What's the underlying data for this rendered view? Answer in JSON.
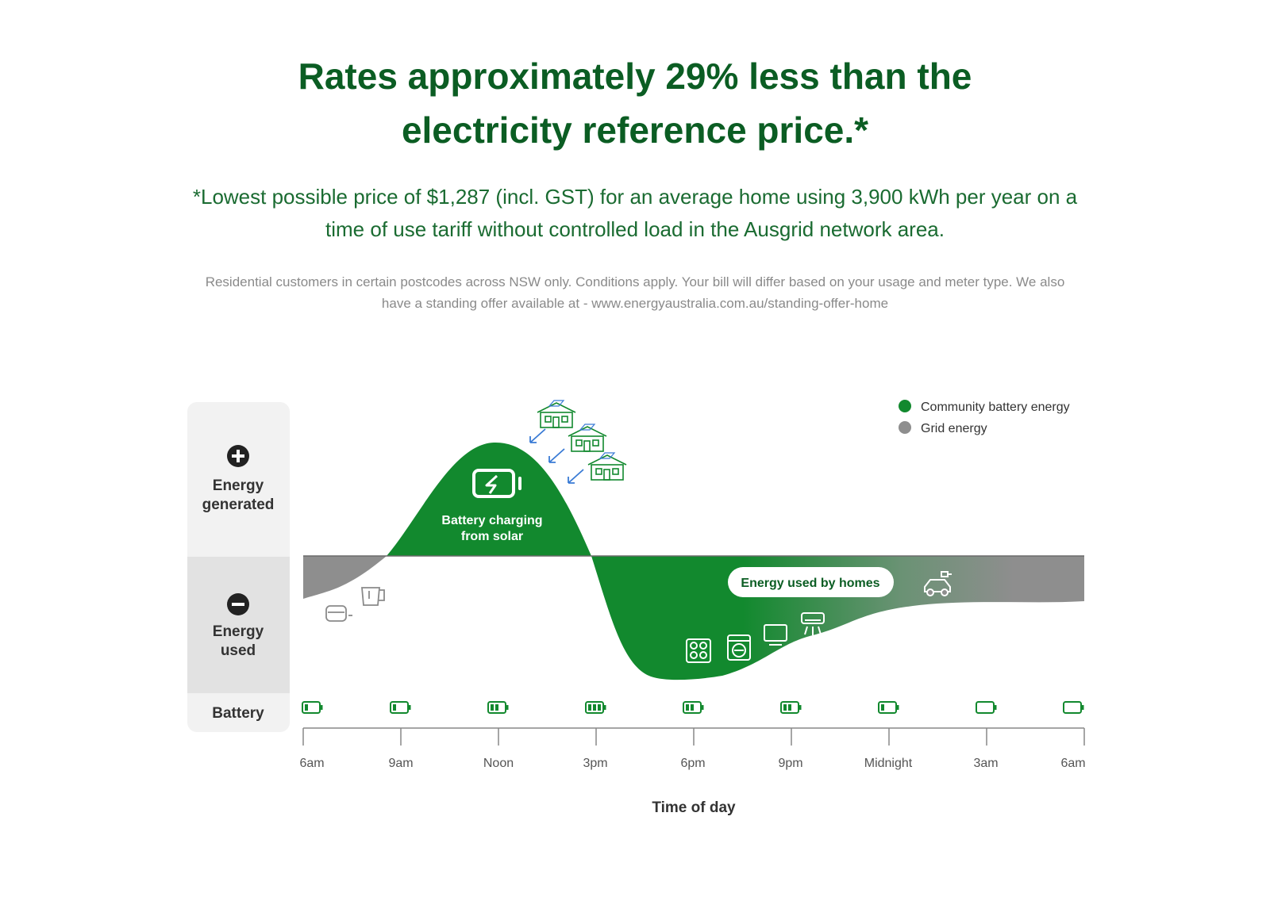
{
  "header": {
    "title_line1": "Rates approximately 29% less than the",
    "title_line2": "electricity reference price.*",
    "subtitle_line1": "*Lowest possible price of $1,287 (incl. GST) for an average home using 3,900 kWh per year on a",
    "subtitle_line2": "time of use tariff without controlled load in the Ausgrid network area.",
    "disclaimer_line1": "Residential customers in certain postcodes across NSW only. Conditions apply. Your bill will differ based on your usage and meter type. We also",
    "disclaimer_line2": "have a standing offer available at - www.energyaustralia.com.au/standing-offer-home"
  },
  "diagram": {
    "side_labels": {
      "generated_line1": "Energy",
      "generated_line2": "generated",
      "used_line1": "Energy",
      "used_line2": "used",
      "battery": "Battery"
    },
    "charging_label_line1": "Battery charging",
    "charging_label_line2": "from solar",
    "homes_pill": "Energy used by homes",
    "legend": [
      {
        "label": "Community battery energy",
        "color": "#12892e"
      },
      {
        "label": "Grid energy",
        "color": "#8e8e8e"
      }
    ],
    "x_axis": {
      "label": "Time of day",
      "ticks": [
        "6am",
        "9am",
        "Noon",
        "3pm",
        "6pm",
        "9pm",
        "Midnight",
        "3am",
        "6am"
      ]
    },
    "battery_levels": [
      1,
      1,
      2,
      3,
      2,
      2,
      1,
      0,
      0
    ],
    "icons": [
      "house-solar-icon",
      "toaster-icon",
      "kettle-icon",
      "cooktop-icon",
      "washing-machine-icon",
      "television-icon",
      "air-conditioner-icon",
      "electric-car-icon",
      "battery-charging-icon"
    ]
  }
}
